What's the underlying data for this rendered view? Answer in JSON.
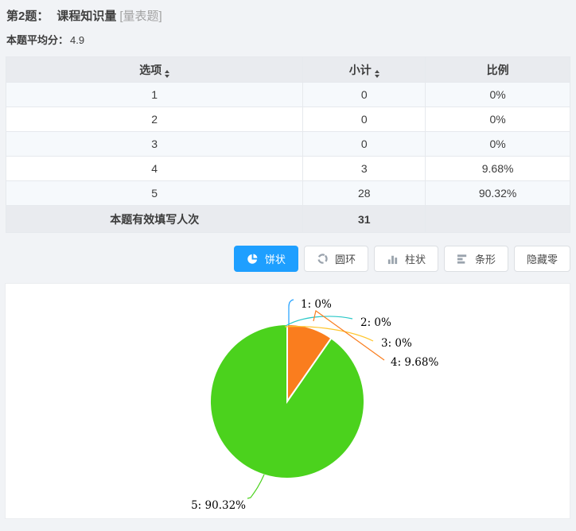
{
  "question": {
    "number_label": "第2题：",
    "title": "课程知识量",
    "type_tag": "[量表题]",
    "average_label": "本题平均分：",
    "average_value": "4.9"
  },
  "table": {
    "headers": [
      {
        "label": "选项",
        "sortable": true
      },
      {
        "label": "小计",
        "sortable": true
      },
      {
        "label": "比例",
        "sortable": false
      }
    ],
    "rows": [
      {
        "option": "1",
        "count": "0",
        "ratio": "0%"
      },
      {
        "option": "2",
        "count": "0",
        "ratio": "0%"
      },
      {
        "option": "3",
        "count": "0",
        "ratio": "0%"
      },
      {
        "option": "4",
        "count": "3",
        "ratio": "9.68%"
      },
      {
        "option": "5",
        "count": "28",
        "ratio": "90.32%"
      }
    ],
    "footer": {
      "label": "本题有效填写人次",
      "total": "31",
      "ratio": ""
    }
  },
  "toolbar": {
    "pie_label": "饼状",
    "donut_label": "圆环",
    "column_label": "柱状",
    "bar_label": "条形",
    "hide_zero_label": "隐藏零",
    "active_color": "#1e9fff"
  },
  "chart": {
    "labels": [
      "1: 0%",
      "2: 0%",
      "3: 0%",
      "4: 9.68%",
      "5: 90.32%"
    ],
    "colors": [
      "#1e9fff",
      "#2bc8c8",
      "#ffc62e",
      "#fa7d1e",
      "#4bd21d"
    ]
  },
  "chart_data": {
    "type": "pie",
    "categories": [
      "1",
      "2",
      "3",
      "4",
      "5"
    ],
    "values": [
      0,
      0,
      0,
      3,
      28
    ],
    "percentages": [
      "0%",
      "0%",
      "0%",
      "9.68%",
      "90.32%"
    ],
    "total_responses": 31,
    "start_angle_deg": 0,
    "direction": "clockwise",
    "legend_position": "none",
    "label_format": "category: percent",
    "slice_colors": [
      "#1e9fff",
      "#2bc8c8",
      "#ffc62e",
      "#fa7d1e",
      "#4bd21d"
    ]
  }
}
